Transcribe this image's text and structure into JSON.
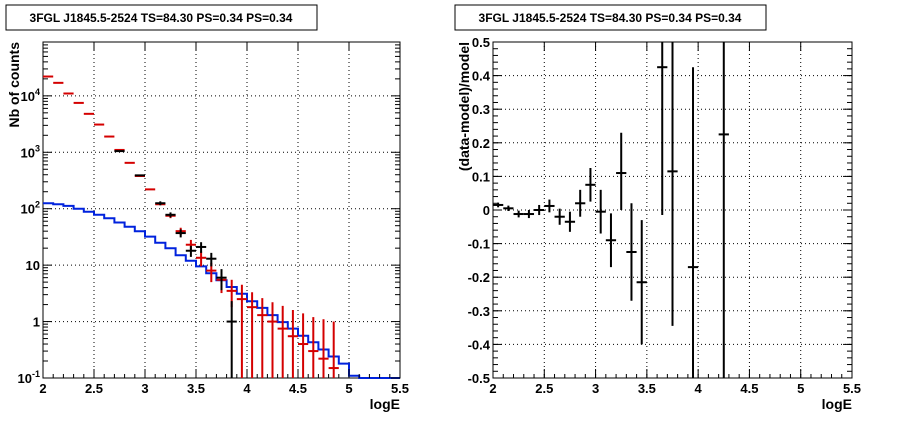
{
  "chart_data": [
    {
      "type": "scatter",
      "title": "3FGL J1845.5-2524 TS=84.30 PS=0.34 PS=0.34",
      "xlabel": "logE",
      "ylabel": "Nb of counts",
      "xlim": [
        2,
        5.5
      ],
      "ylim": [
        0.1,
        90000
      ],
      "yscale": "log",
      "grid": true,
      "x_ticks": [
        {
          "v": 2,
          "label": "2"
        },
        {
          "v": 2.5,
          "label": "2.5"
        },
        {
          "v": 3,
          "label": "3"
        },
        {
          "v": 3.5,
          "label": "3.5"
        },
        {
          "v": 4,
          "label": "4"
        },
        {
          "v": 4.5,
          "label": "4.5"
        },
        {
          "v": 5,
          "label": "5"
        },
        {
          "v": 5.5,
          "label": "5.5"
        }
      ],
      "y_ticks": [
        {
          "v": 0.1,
          "base": "10",
          "exp": "-1"
        },
        {
          "v": 1,
          "base": "1",
          "exp": ""
        },
        {
          "v": 10,
          "base": "10",
          "exp": ""
        },
        {
          "v": 100,
          "base": "10",
          "exp": "2"
        },
        {
          "v": 1000,
          "base": "10",
          "exp": "3"
        },
        {
          "v": 10000,
          "base": "10",
          "exp": "4"
        }
      ],
      "series": [
        {
          "role": "model",
          "color": "#d40000",
          "points": [
            {
              "x": 2.05,
              "y": 22000,
              "lo": 22000,
              "hi": 22000
            },
            {
              "x": 2.15,
              "y": 17000,
              "lo": 17000,
              "hi": 17000
            },
            {
              "x": 2.25,
              "y": 11000,
              "lo": 11000,
              "hi": 11000
            },
            {
              "x": 2.35,
              "y": 7500,
              "lo": 7500,
              "hi": 7500
            },
            {
              "x": 2.45,
              "y": 4800,
              "lo": 4800,
              "hi": 4800
            },
            {
              "x": 2.55,
              "y": 3100,
              "lo": 3100,
              "hi": 3100
            },
            {
              "x": 2.65,
              "y": 1900,
              "lo": 1900,
              "hi": 1900
            },
            {
              "x": 2.75,
              "y": 1100,
              "lo": 1100,
              "hi": 1100
            },
            {
              "x": 2.85,
              "y": 650,
              "lo": 650,
              "hi": 650
            },
            {
              "x": 2.95,
              "y": 380,
              "lo": 380,
              "hi": 380
            },
            {
              "x": 3.05,
              "y": 220,
              "lo": 220,
              "hi": 220
            },
            {
              "x": 3.15,
              "y": 120,
              "lo": 120,
              "hi": 120
            },
            {
              "x": 3.25,
              "y": 75,
              "lo": 68,
              "hi": 82
            },
            {
              "x": 3.35,
              "y": 40,
              "lo": 34,
              "hi": 46
            },
            {
              "x": 3.45,
              "y": 23,
              "lo": 18,
              "hi": 28
            },
            {
              "x": 3.55,
              "y": 13.5,
              "lo": 9.5,
              "hi": 17.5
            },
            {
              "x": 3.65,
              "y": 8,
              "lo": 5,
              "hi": 11
            },
            {
              "x": 3.75,
              "y": 5.5,
              "lo": 3.2,
              "hi": 8
            },
            {
              "x": 3.85,
              "y": 3.5,
              "lo": 1.8,
              "hi": 5.5
            },
            {
              "x": 3.95,
              "y": 2.5,
              "lo": 0.1,
              "hi": 4.5
            },
            {
              "x": 4.05,
              "y": 1.8,
              "lo": 0.1,
              "hi": 3.3
            },
            {
              "x": 4.15,
              "y": 1.3,
              "lo": 0.1,
              "hi": 2.6
            },
            {
              "x": 4.25,
              "y": 1.0,
              "lo": 0.1,
              "hi": 2.2
            },
            {
              "x": 4.35,
              "y": 0.75,
              "lo": 0.1,
              "hi": 1.9
            },
            {
              "x": 4.45,
              "y": 0.55,
              "lo": 0.1,
              "hi": 1.6
            },
            {
              "x": 4.55,
              "y": 0.4,
              "lo": 0.1,
              "hi": 1.4
            },
            {
              "x": 4.65,
              "y": 0.3,
              "lo": 0.1,
              "hi": 1.2
            },
            {
              "x": 4.75,
              "y": 0.22,
              "lo": 0.1,
              "hi": 1.1
            },
            {
              "x": 4.85,
              "y": 0.15,
              "lo": 0.1,
              "hi": 1.0
            }
          ]
        },
        {
          "role": "data",
          "color": "#000000",
          "points": [
            {
              "x": 2.75,
              "y": 1050,
              "lo": 1050,
              "hi": 1050
            },
            {
              "x": 2.95,
              "y": 390,
              "lo": 390,
              "hi": 390
            },
            {
              "x": 3.15,
              "y": 125,
              "lo": 115,
              "hi": 135
            },
            {
              "x": 3.25,
              "y": 78,
              "lo": 70,
              "hi": 86
            },
            {
              "x": 3.35,
              "y": 37,
              "lo": 31,
              "hi": 43
            },
            {
              "x": 3.45,
              "y": 18,
              "lo": 14,
              "hi": 22
            },
            {
              "x": 3.55,
              "y": 21,
              "lo": 16.5,
              "hi": 25.5
            },
            {
              "x": 3.65,
              "y": 13,
              "lo": 9.5,
              "hi": 16.5
            },
            {
              "x": 3.75,
              "y": 6,
              "lo": 3.6,
              "hi": 8.5
            },
            {
              "x": 3.85,
              "y": 1.0,
              "lo": 0.1,
              "hi": 2.3
            }
          ]
        }
      ],
      "step_line": {
        "color": "#0022dd",
        "edges": [
          2.0,
          2.1,
          2.2,
          2.3,
          2.4,
          2.5,
          2.6,
          2.7,
          2.8,
          2.9,
          3.0,
          3.1,
          3.2,
          3.3,
          3.4,
          3.5,
          3.6,
          3.7,
          3.8,
          3.9,
          4.0,
          4.1,
          4.2,
          4.3,
          4.4,
          4.5,
          4.6,
          4.7,
          4.8,
          4.9,
          5.0,
          5.1,
          5.2,
          5.3,
          5.4,
          5.5
        ],
        "values": [
          125,
          120,
          112,
          100,
          88,
          78,
          68,
          57,
          48,
          40,
          32,
          25,
          20,
          15,
          12,
          9.5,
          7.2,
          5.4,
          4.1,
          3.1,
          2.3,
          1.75,
          1.3,
          0.98,
          0.75,
          0.56,
          0.43,
          0.32,
          0.24,
          0.18,
          0.11,
          0.1,
          0.1,
          0.1,
          0.1
        ]
      }
    },
    {
      "type": "scatter",
      "title": "3FGL J1845.5-2524 TS=84.30 PS=0.34 PS=0.34",
      "xlabel": "logE",
      "ylabel": "(data-model)/model",
      "xlim": [
        2,
        5.5
      ],
      "ylim": [
        -0.5,
        0.5
      ],
      "grid": true,
      "x_ticks": [
        {
          "v": 2,
          "label": "2"
        },
        {
          "v": 2.5,
          "label": "2.5"
        },
        {
          "v": 3,
          "label": "3"
        },
        {
          "v": 3.5,
          "label": "3.5"
        },
        {
          "v": 4,
          "label": "4"
        },
        {
          "v": 4.5,
          "label": "4.5"
        },
        {
          "v": 5,
          "label": "5"
        },
        {
          "v": 5.5,
          "label": "5.5"
        }
      ],
      "y_ticks": [
        {
          "v": -0.5,
          "label": "-0.5"
        },
        {
          "v": -0.4,
          "label": "-0.4"
        },
        {
          "v": -0.3,
          "label": "-0.3"
        },
        {
          "v": -0.2,
          "label": "-0.2"
        },
        {
          "v": -0.1,
          "label": "-0.1"
        },
        {
          "v": 0,
          "label": "0"
        },
        {
          "v": 0.1,
          "label": "0.1"
        },
        {
          "v": 0.2,
          "label": "0.2"
        },
        {
          "v": 0.3,
          "label": "0.3"
        },
        {
          "v": 0.4,
          "label": "0.4"
        },
        {
          "v": 0.5,
          "label": "0.5"
        }
      ],
      "series": [
        {
          "role": "residual",
          "color": "#000000",
          "points": [
            {
              "x": 2.05,
              "y": 0.015,
              "lo": 0.008,
              "hi": 0.022
            },
            {
              "x": 2.15,
              "y": 0.005,
              "lo": -0.003,
              "hi": 0.013
            },
            {
              "x": 2.25,
              "y": -0.012,
              "lo": -0.022,
              "hi": -0.002
            },
            {
              "x": 2.35,
              "y": -0.012,
              "lo": -0.024,
              "hi": 0.0
            },
            {
              "x": 2.45,
              "y": 0.0,
              "lo": -0.015,
              "hi": 0.015
            },
            {
              "x": 2.55,
              "y": 0.012,
              "lo": -0.007,
              "hi": 0.031
            },
            {
              "x": 2.65,
              "y": -0.02,
              "lo": -0.044,
              "hi": 0.004
            },
            {
              "x": 2.75,
              "y": -0.035,
              "lo": -0.065,
              "hi": -0.005
            },
            {
              "x": 2.85,
              "y": 0.02,
              "lo": -0.02,
              "hi": 0.06
            },
            {
              "x": 2.95,
              "y": 0.075,
              "lo": 0.025,
              "hi": 0.125
            },
            {
              "x": 3.05,
              "y": -0.005,
              "lo": -0.07,
              "hi": 0.06
            },
            {
              "x": 3.15,
              "y": -0.09,
              "lo": -0.17,
              "hi": -0.01
            },
            {
              "x": 3.25,
              "y": 0.11,
              "lo": 0.0,
              "hi": 0.23
            },
            {
              "x": 3.35,
              "y": -0.125,
              "lo": -0.27,
              "hi": 0.02
            },
            {
              "x": 3.45,
              "y": -0.215,
              "lo": -0.4,
              "hi": -0.03
            },
            {
              "x": 3.65,
              "y": 0.425,
              "lo": -0.015,
              "hi": 0.5
            },
            {
              "x": 3.75,
              "y": 0.115,
              "lo": -0.345,
              "hi": 0.5
            },
            {
              "x": 3.95,
              "y": -0.17,
              "lo": -0.5,
              "hi": 0.425
            },
            {
              "x": 4.25,
              "y": 0.225,
              "lo": -0.5,
              "hi": 0.5
            }
          ]
        }
      ]
    }
  ]
}
